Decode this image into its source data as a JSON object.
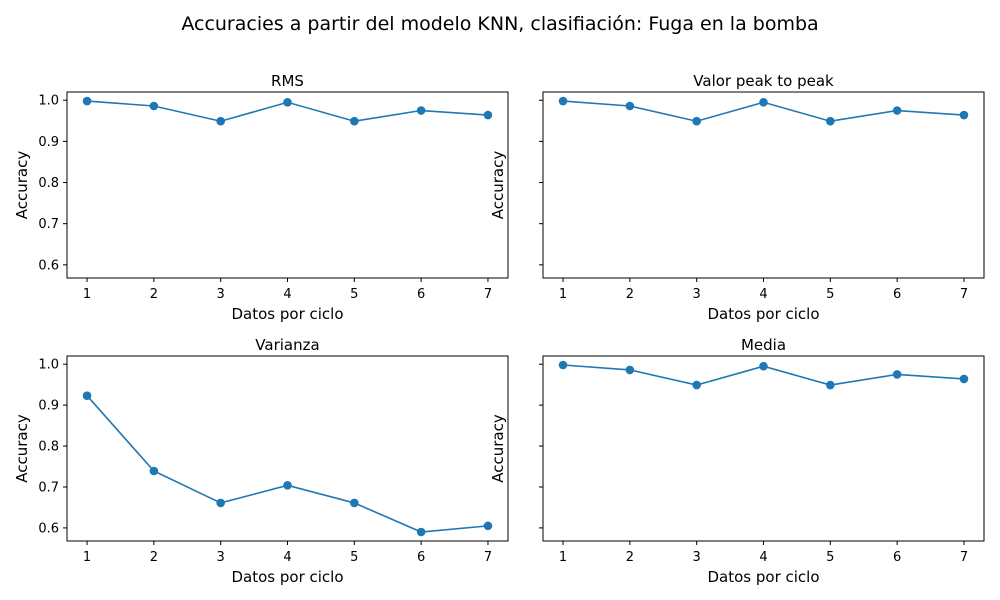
{
  "figure": {
    "title": "Accuracies a partir del modelo KNN, clasifiación: Fuga en la bomba"
  },
  "colors": {
    "series": "#1f77b4",
    "axes": "#000000",
    "background": "#ffffff"
  },
  "chart_data": [
    {
      "type": "line",
      "title": "RMS",
      "xlabel": "Datos por ciclo",
      "ylabel": "Accuracy",
      "x": [
        1,
        2,
        3,
        4,
        5,
        6,
        7
      ],
      "values": [
        0.998,
        0.986,
        0.949,
        0.995,
        0.949,
        0.975,
        0.964
      ],
      "xticks": [
        "1",
        "2",
        "3",
        "4",
        "5",
        "6",
        "7"
      ],
      "yticks": [
        "0.6",
        "0.7",
        "0.8",
        "0.9",
        "1.0"
      ],
      "show_ytick_labels": true,
      "ylim": [
        0.568,
        1.02
      ],
      "xlim": [
        0.7,
        7.3
      ],
      "marker": "circle",
      "grid": false
    },
    {
      "type": "line",
      "title": "Valor peak to peak",
      "xlabel": "Datos por ciclo",
      "ylabel": "Accuracy",
      "x": [
        1,
        2,
        3,
        4,
        5,
        6,
        7
      ],
      "values": [
        0.998,
        0.986,
        0.949,
        0.995,
        0.949,
        0.975,
        0.964
      ],
      "xticks": [
        "1",
        "2",
        "3",
        "4",
        "5",
        "6",
        "7"
      ],
      "yticks": [
        "0.6",
        "0.7",
        "0.8",
        "0.9",
        "1.0"
      ],
      "show_ytick_labels": false,
      "ylim": [
        0.568,
        1.02
      ],
      "xlim": [
        0.7,
        7.3
      ],
      "marker": "circle",
      "grid": false
    },
    {
      "type": "line",
      "title": "Varianza",
      "xlabel": "Datos por ciclo",
      "ylabel": "Accuracy",
      "x": [
        1,
        2,
        3,
        4,
        5,
        6,
        7
      ],
      "values": [
        0.923,
        0.739,
        0.661,
        0.704,
        0.661,
        0.59,
        0.605
      ],
      "xticks": [
        "1",
        "2",
        "3",
        "4",
        "5",
        "6",
        "7"
      ],
      "yticks": [
        "0.6",
        "0.7",
        "0.8",
        "0.9",
        "1.0"
      ],
      "show_ytick_labels": true,
      "ylim": [
        0.568,
        1.02
      ],
      "xlim": [
        0.7,
        7.3
      ],
      "marker": "circle",
      "grid": false
    },
    {
      "type": "line",
      "title": "Media",
      "xlabel": "Datos por ciclo",
      "ylabel": "Accuracy",
      "x": [
        1,
        2,
        3,
        4,
        5,
        6,
        7
      ],
      "values": [
        0.998,
        0.986,
        0.949,
        0.995,
        0.949,
        0.975,
        0.964
      ],
      "xticks": [
        "1",
        "2",
        "3",
        "4",
        "5",
        "6",
        "7"
      ],
      "yticks": [
        "0.6",
        "0.7",
        "0.8",
        "0.9",
        "1.0"
      ],
      "show_ytick_labels": false,
      "ylim": [
        0.568,
        1.02
      ],
      "xlim": [
        0.7,
        7.3
      ],
      "marker": "circle",
      "grid": false
    }
  ]
}
